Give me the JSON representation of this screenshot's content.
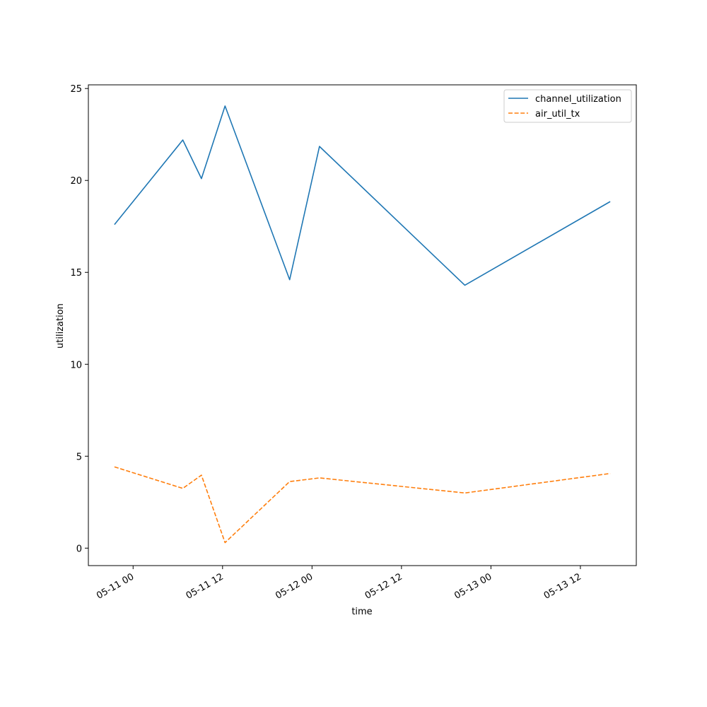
{
  "chart_data": {
    "type": "line",
    "title": "",
    "xlabel": "time",
    "ylabel": "utilization",
    "x": [
      "2024-05-10T21:30",
      "2024-05-11T06:40",
      "2024-05-11T09:10",
      "2024-05-11T12:20",
      "2024-05-11T21:00",
      "2024-05-12T01:00",
      "2024-05-12T20:30",
      "2024-05-13T16:00"
    ],
    "series": [
      {
        "name": "channel_utilization",
        "color": "#1f77b4",
        "style": "solid",
        "values": [
          17.6,
          22.2,
          20.1,
          24.05,
          14.6,
          21.85,
          14.3,
          18.85
        ]
      },
      {
        "name": "air_util_tx",
        "color": "#ff7f0e",
        "style": "dashed",
        "values": [
          4.42,
          3.25,
          3.97,
          0.3,
          3.62,
          3.82,
          3.0,
          4.06
        ]
      }
    ],
    "xlim": [
      "2024-05-10T18:00",
      "2024-05-13T19:30"
    ],
    "ylim": [
      -0.95,
      25.2
    ],
    "xticks": [
      {
        "at": "2024-05-11T00:00",
        "label": "05-11 00"
      },
      {
        "at": "2024-05-11T12:00",
        "label": "05-11 12"
      },
      {
        "at": "2024-05-12T00:00",
        "label": "05-12 00"
      },
      {
        "at": "2024-05-12T12:00",
        "label": "05-12 12"
      },
      {
        "at": "2024-05-13T00:00",
        "label": "05-13 00"
      },
      {
        "at": "2024-05-13T12:00",
        "label": "05-13 12"
      }
    ],
    "yticks": [
      0,
      5,
      10,
      15,
      20,
      25
    ],
    "grid": false,
    "legend": "top-right"
  }
}
